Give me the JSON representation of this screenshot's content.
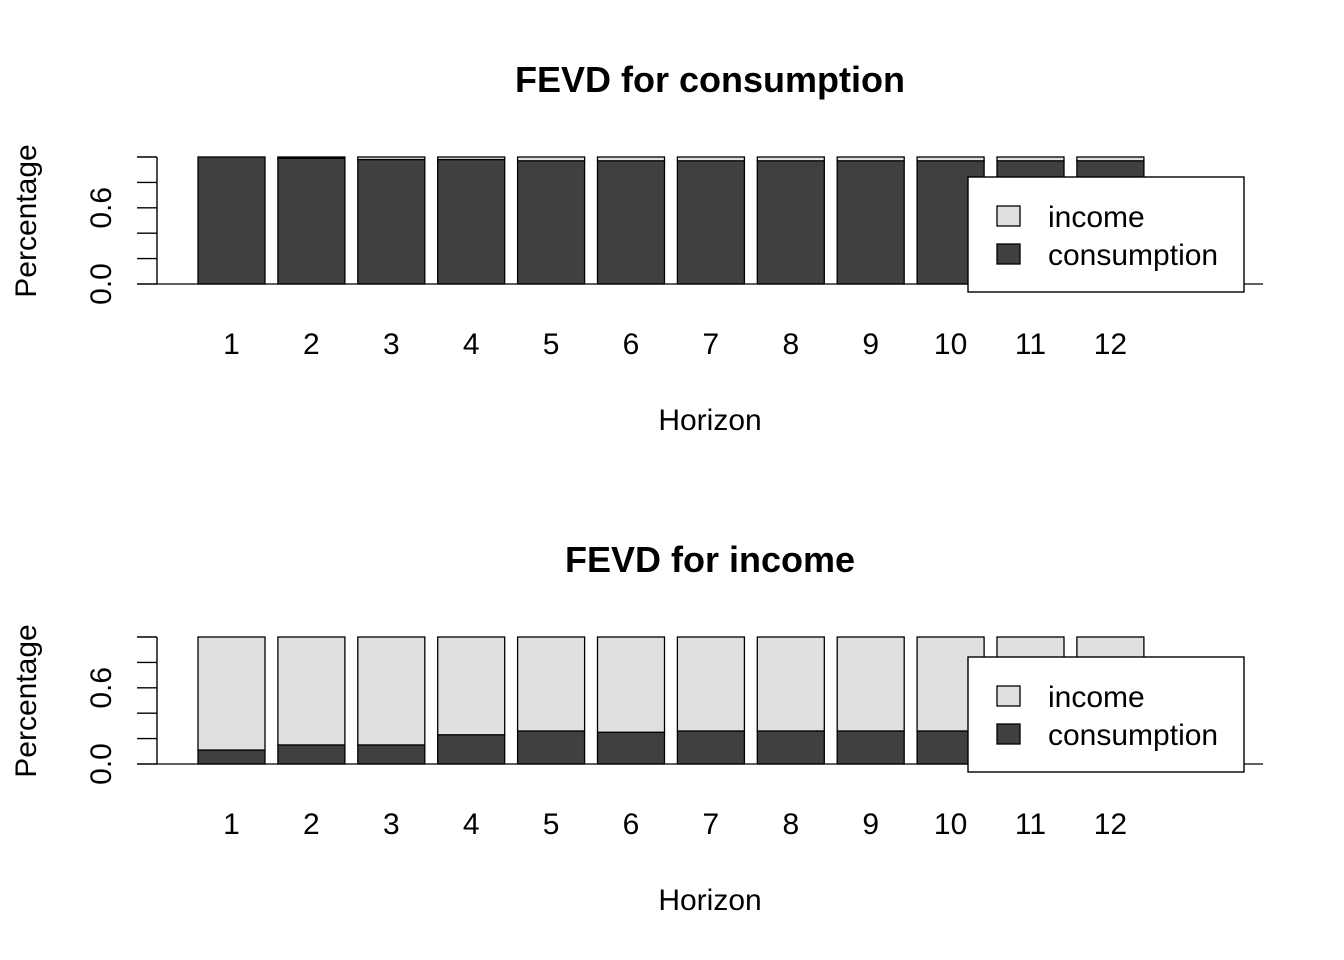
{
  "chart_data": [
    {
      "type": "bar",
      "stacked": true,
      "title": "FEVD for consumption",
      "xlabel": "Horizon",
      "ylabel": "Percentage",
      "categories": [
        "1",
        "2",
        "3",
        "4",
        "5",
        "6",
        "7",
        "8",
        "9",
        "10",
        "11",
        "12"
      ],
      "ylim": [
        0,
        1
      ],
      "yticks": [
        "0.0",
        "0.6"
      ],
      "series": [
        {
          "name": "consumption",
          "color": "#404040",
          "values": [
            1.0,
            0.99,
            0.98,
            0.98,
            0.97,
            0.97,
            0.97,
            0.97,
            0.97,
            0.97,
            0.97,
            0.97
          ]
        },
        {
          "name": "income",
          "color": "#e0e0e0",
          "values": [
            0.0,
            0.01,
            0.02,
            0.02,
            0.03,
            0.03,
            0.03,
            0.03,
            0.03,
            0.03,
            0.03,
            0.03
          ]
        }
      ],
      "legend": "top-right"
    },
    {
      "type": "bar",
      "stacked": true,
      "title": "FEVD for income",
      "xlabel": "Horizon",
      "ylabel": "Percentage",
      "categories": [
        "1",
        "2",
        "3",
        "4",
        "5",
        "6",
        "7",
        "8",
        "9",
        "10",
        "11",
        "12"
      ],
      "ylim": [
        0,
        1
      ],
      "yticks": [
        "0.0",
        "0.6"
      ],
      "series": [
        {
          "name": "consumption",
          "color": "#404040",
          "values": [
            0.11,
            0.15,
            0.15,
            0.23,
            0.26,
            0.25,
            0.26,
            0.26,
            0.26,
            0.26,
            0.26,
            0.26
          ]
        },
        {
          "name": "income",
          "color": "#e0e0e0",
          "values": [
            0.89,
            0.85,
            0.85,
            0.77,
            0.74,
            0.75,
            0.74,
            0.74,
            0.74,
            0.74,
            0.74,
            0.74
          ]
        }
      ],
      "legend": "top-right"
    }
  ]
}
